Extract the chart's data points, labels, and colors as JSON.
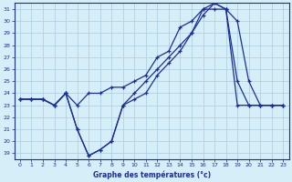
{
  "background_color": "#d6eef8",
  "grid_color": "#aaccdd",
  "line_color": "#1a2e99",
  "xlim": [
    -0.5,
    23.5
  ],
  "ylim": [
    18.5,
    31.5
  ],
  "xlabel": "Graphe des températures (°c)",
  "xtick_labels": [
    "0",
    "1",
    "2",
    "3",
    "4",
    "5",
    "6",
    "7",
    "8",
    "9",
    "10",
    "11",
    "12",
    "13",
    "14",
    "15",
    "16",
    "17",
    "18",
    "19",
    "20",
    "21",
    "22",
    "23"
  ],
  "xtick_vals": [
    0,
    1,
    2,
    3,
    4,
    5,
    6,
    7,
    8,
    9,
    10,
    11,
    12,
    13,
    14,
    15,
    16,
    17,
    18,
    19,
    20,
    21,
    22,
    23
  ],
  "ytick_vals": [
    19,
    20,
    21,
    22,
    23,
    24,
    25,
    26,
    27,
    28,
    29,
    30,
    31
  ],
  "series1_x": [
    0,
    1,
    2,
    3,
    4,
    5,
    6,
    7,
    8,
    9,
    10,
    11,
    12,
    13,
    14,
    15,
    16,
    17,
    18,
    19,
    20,
    21,
    22,
    23
  ],
  "series1_y": [
    23.5,
    23.5,
    23.5,
    23.0,
    24.0,
    23.0,
    24.0,
    24.0,
    24.5,
    24.5,
    25.0,
    25.5,
    27.0,
    27.5,
    29.5,
    30.0,
    31.0,
    31.0,
    31.0,
    23.0,
    23.0,
    23.0,
    23.0,
    23.0
  ],
  "series2_x": [
    0,
    1,
    2,
    3,
    4,
    5,
    6,
    7,
    8,
    9,
    10,
    11,
    12,
    13,
    14,
    15,
    16,
    17,
    18,
    19,
    20,
    21,
    22,
    23
  ],
  "series2_y": [
    23.5,
    23.5,
    23.5,
    23.0,
    24.0,
    21.0,
    18.8,
    19.3,
    20.0,
    23.0,
    23.5,
    24.0,
    25.5,
    26.5,
    27.5,
    29.0,
    30.5,
    31.5,
    31.0,
    25.0,
    23.0,
    23.0,
    23.0,
    23.0
  ],
  "series3_x": [
    0,
    1,
    2,
    3,
    4,
    5,
    6,
    7,
    8,
    9,
    10,
    11,
    12,
    13,
    14,
    15,
    16,
    17,
    18,
    19,
    20,
    21,
    22,
    23
  ],
  "series3_y": [
    23.5,
    23.5,
    23.5,
    23.0,
    24.0,
    21.0,
    18.8,
    19.3,
    20.0,
    23.0,
    24.0,
    25.0,
    26.0,
    27.0,
    28.0,
    29.0,
    31.0,
    31.5,
    31.0,
    30.0,
    25.0,
    23.0,
    23.0,
    23.0
  ]
}
